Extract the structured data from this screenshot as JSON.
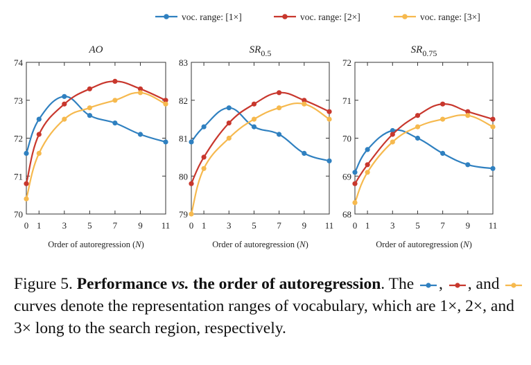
{
  "chart_data": {
    "type": "line",
    "legend": {
      "placement": "top",
      "entries": [
        {
          "label": "voc. range: [1×]",
          "color": "#2f80c0"
        },
        {
          "label": "voc. range: [2×]",
          "color": "#c8372d"
        },
        {
          "label": "voc. range: [3×]",
          "color": "#f6b94e"
        }
      ]
    },
    "charts": [
      {
        "title_main": "AO",
        "title_sub": "",
        "xlabel_text": "Order of autoregression (",
        "xlabel_var": "N",
        "xlabel_end": ")",
        "x": [
          0,
          1,
          3,
          5,
          7,
          9,
          11
        ],
        "xticks": [
          "0",
          "1",
          "3",
          "5",
          "7",
          "9",
          "11"
        ],
        "ylim": [
          70,
          74
        ],
        "yticks": [
          "70",
          "71",
          "72",
          "73",
          "74"
        ],
        "series": [
          {
            "name": "voc. range: [1×]",
            "values": [
              71.6,
              72.5,
              73.1,
              72.6,
              72.4,
              72.1,
              71.9
            ]
          },
          {
            "name": "voc. range: [2×]",
            "values": [
              70.8,
              72.1,
              72.9,
              73.3,
              73.5,
              73.3,
              73.0
            ]
          },
          {
            "name": "voc. range: [3×]",
            "values": [
              70.4,
              71.6,
              72.5,
              72.8,
              73.0,
              73.2,
              72.9
            ]
          }
        ]
      },
      {
        "title_main": "SR",
        "title_sub": "0.5",
        "xlabel_text": "Order of autoregression (",
        "xlabel_var": "N",
        "xlabel_end": ")",
        "x": [
          0,
          1,
          3,
          5,
          7,
          9,
          11
        ],
        "xticks": [
          "0",
          "1",
          "3",
          "5",
          "7",
          "9",
          "11"
        ],
        "ylim": [
          79,
          83
        ],
        "yticks": [
          "79",
          "80",
          "81",
          "82",
          "83"
        ],
        "series": [
          {
            "name": "voc. range: [1×]",
            "values": [
              80.9,
              81.3,
              81.8,
              81.3,
              81.1,
              80.6,
              80.4
            ]
          },
          {
            "name": "voc. range: [2×]",
            "values": [
              79.8,
              80.5,
              81.4,
              81.9,
              82.2,
              82.0,
              81.7
            ]
          },
          {
            "name": "voc. range: [3×]",
            "values": [
              79.0,
              80.2,
              81.0,
              81.5,
              81.8,
              81.9,
              81.5
            ]
          }
        ]
      },
      {
        "title_main": "SR",
        "title_sub": "0.75",
        "xlabel_text": "Order of autoregression (",
        "xlabel_var": "N",
        "xlabel_end": ")",
        "x": [
          0,
          1,
          3,
          5,
          7,
          9,
          11
        ],
        "xticks": [
          "0",
          "1",
          "3",
          "5",
          "7",
          "9",
          "11"
        ],
        "ylim": [
          68,
          72
        ],
        "yticks": [
          "68",
          "69",
          "70",
          "71",
          "72"
        ],
        "series": [
          {
            "name": "voc. range: [1×]",
            "values": [
              69.1,
              69.7,
              70.2,
              70.0,
              69.6,
              69.3,
              69.2
            ]
          },
          {
            "name": "voc. range: [2×]",
            "values": [
              68.8,
              69.3,
              70.1,
              70.6,
              70.9,
              70.7,
              70.5
            ]
          },
          {
            "name": "voc. range: [3×]",
            "values": [
              68.3,
              69.1,
              69.9,
              70.3,
              70.5,
              70.6,
              70.3
            ]
          }
        ]
      }
    ]
  },
  "caption": {
    "figure_label": "Figure 5.",
    "bold_title_pre": "Performance ",
    "bold_title_vs": "vs.",
    "bold_title_post": " the order of autoregression",
    "period": ".",
    "text_the": " The ",
    "comma1": ",",
    "comma2": ", and",
    "text_curves": " curves denote the representation ranges of vocabulary, which are 1×, 2×, and 3× long to the search region, respectively."
  }
}
